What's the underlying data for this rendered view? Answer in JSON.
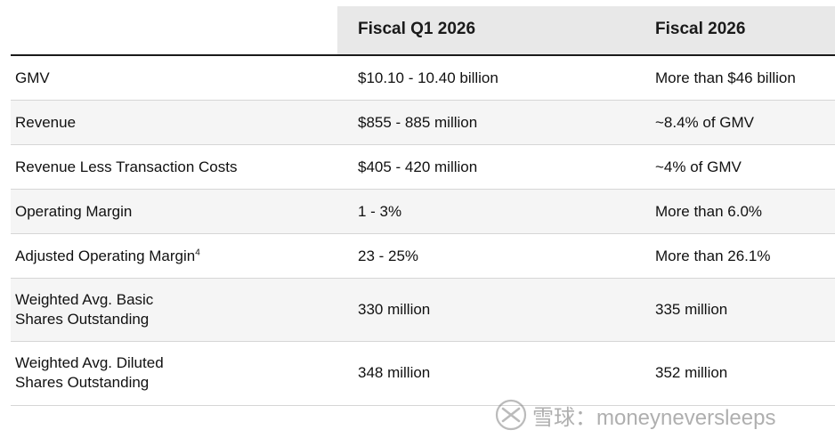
{
  "table": {
    "columns": [
      "",
      "Fiscal Q1 2026",
      "Fiscal 2026"
    ],
    "rows": [
      {
        "metric": "GMV",
        "q1": "$10.10 - 10.40 billion",
        "fy": "More than $46 billion"
      },
      {
        "metric": "Revenue",
        "q1": "$855 - 885 million",
        "fy": "~8.4% of GMV"
      },
      {
        "metric": "Revenue Less Transaction Costs",
        "q1": "$405 - 420 million",
        "fy": "~4% of GMV"
      },
      {
        "metric": "Operating Margin",
        "q1": "1 - 3%",
        "fy": "More than 6.0%"
      },
      {
        "metric": "Adjusted Operating Margin",
        "metric_sup": "4",
        "q1": "23 - 25%",
        "fy": "More than 26.1%"
      },
      {
        "metric_line1": "Weighted Avg. Basic",
        "metric_line2": "Shares Outstanding",
        "q1": "330 million",
        "fy": "335 million"
      },
      {
        "metric_line1": "Weighted Avg. Diluted",
        "metric_line2": "Shares Outstanding",
        "q1": "348 million",
        "fy": "352 million"
      }
    ]
  },
  "watermark": {
    "text": "雪球：moneyneversleeps",
    "logo_icon": "xueqiu-logo-icon"
  }
}
